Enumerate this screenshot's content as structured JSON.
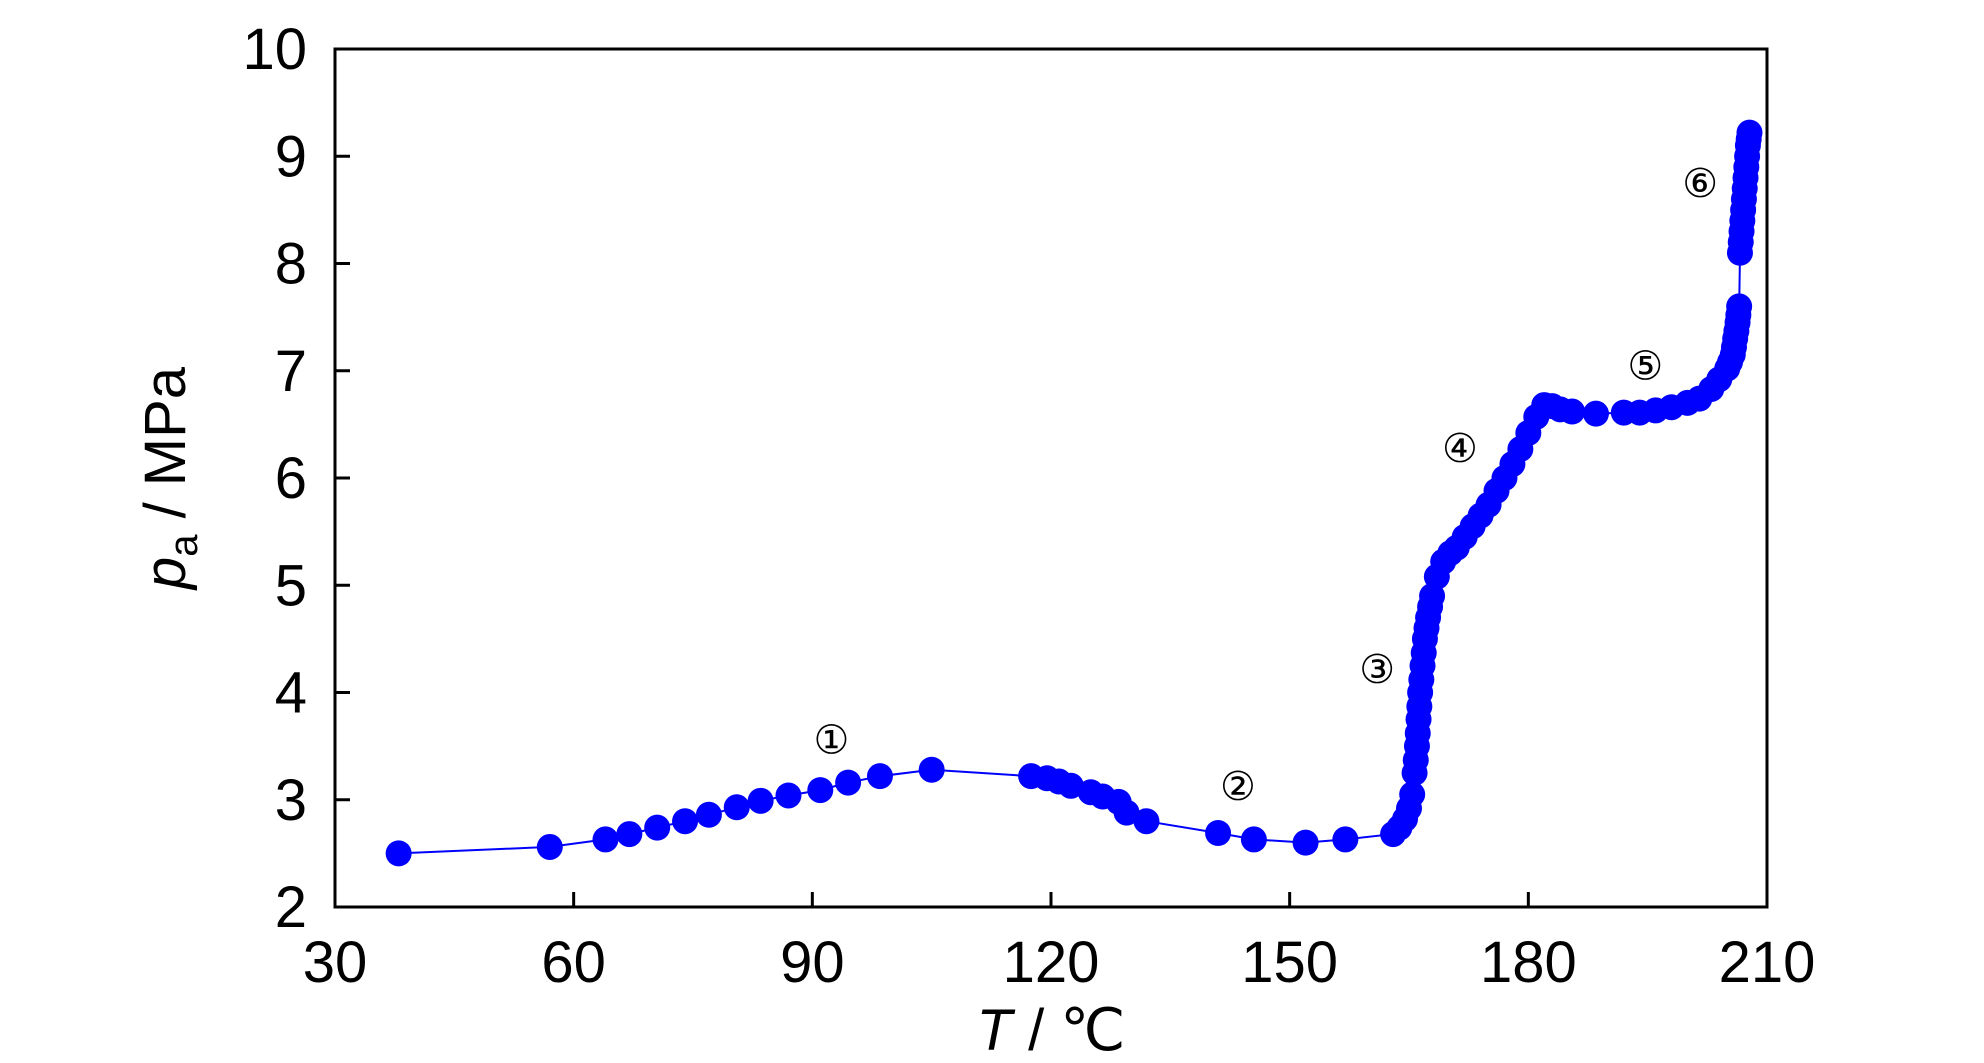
{
  "chart_data": {
    "type": "scatter",
    "title": "",
    "xlabel": {
      "var": "T",
      "unit": " / ℃"
    },
    "ylabel": {
      "var": "p",
      "sub": "a",
      "unit": " / MPa"
    },
    "xlim": [
      30,
      210
    ],
    "ylim": [
      2,
      10
    ],
    "xticks": [
      30,
      60,
      90,
      120,
      150,
      180,
      210
    ],
    "yticks": [
      2,
      3,
      4,
      5,
      6,
      7,
      8,
      9,
      10
    ],
    "grid": false,
    "legend": "none",
    "colors": {
      "series": "#0000FF",
      "axes": "#000000"
    },
    "series": [
      {
        "x": [
          38,
          57,
          64,
          67,
          70.5,
          74,
          77,
          80.5,
          83.5,
          87,
          91,
          94.5,
          98.5,
          105,
          117.5,
          119.5,
          121,
          122.5,
          125,
          126.5,
          128.5,
          129.5,
          132,
          141,
          145.5,
          152,
          157,
          163.0,
          163.8,
          164.5,
          165.0,
          165.4,
          165.7,
          165.85,
          166.0,
          166.1,
          166.2,
          166.3,
          166.4,
          166.55,
          166.7,
          166.85,
          167.0,
          167.2,
          167.4,
          167.65,
          167.9,
          168.5,
          169.3,
          170.2,
          171.0,
          172.0,
          173.0,
          174.0,
          175.0,
          176.0,
          177.0,
          178.0,
          179.0,
          180.0,
          181.0,
          182.0,
          183.0,
          184.0,
          185.5,
          188.5,
          192.0,
          194.0,
          196.0,
          198.0,
          200.0,
          201.5,
          203.0,
          204.0,
          205.0,
          205.35,
          205.7,
          205.85,
          206.0,
          206.15,
          206.3,
          206.4,
          206.5,
          206.6,
          206.7,
          206.8,
          206.9,
          207.0,
          207.1,
          207.2,
          207.3,
          207.4,
          207.5,
          207.6,
          207.7,
          207.8
        ],
        "y": [
          2.5,
          2.56,
          2.63,
          2.68,
          2.74,
          2.8,
          2.86,
          2.93,
          2.99,
          3.04,
          3.09,
          3.16,
          3.22,
          3.28,
          3.22,
          3.2,
          3.17,
          3.13,
          3.07,
          3.03,
          2.98,
          2.88,
          2.8,
          2.69,
          2.63,
          2.6,
          2.63,
          2.68,
          2.74,
          2.82,
          2.92,
          3.05,
          3.25,
          3.37,
          3.5,
          3.62,
          3.75,
          3.87,
          4.0,
          4.12,
          4.25,
          4.37,
          4.5,
          4.6,
          4.7,
          4.8,
          4.9,
          5.08,
          5.22,
          5.3,
          5.35,
          5.45,
          5.55,
          5.65,
          5.75,
          5.88,
          6.0,
          6.13,
          6.27,
          6.42,
          6.57,
          6.68,
          6.67,
          6.64,
          6.62,
          6.6,
          6.61,
          6.61,
          6.63,
          6.66,
          6.7,
          6.74,
          6.83,
          6.92,
          7.02,
          7.08,
          7.15,
          7.22,
          7.3,
          7.37,
          7.45,
          7.52,
          7.6,
          8.1,
          8.2,
          8.3,
          8.4,
          8.5,
          8.6,
          8.7,
          8.8,
          8.9,
          9.0,
          9.1,
          9.16,
          9.22
        ]
      }
    ],
    "annotations": [
      {
        "text": "①",
        "x": 92.4,
        "y": 3.56
      },
      {
        "text": "②",
        "x": 143.5,
        "y": 3.13
      },
      {
        "text": "③",
        "x": 161.0,
        "y": 4.22
      },
      {
        "text": "④",
        "x": 171.4,
        "y": 6.28
      },
      {
        "text": "⑤",
        "x": 194.7,
        "y": 7.05
      },
      {
        "text": "⑥",
        "x": 201.6,
        "y": 8.75
      }
    ]
  }
}
